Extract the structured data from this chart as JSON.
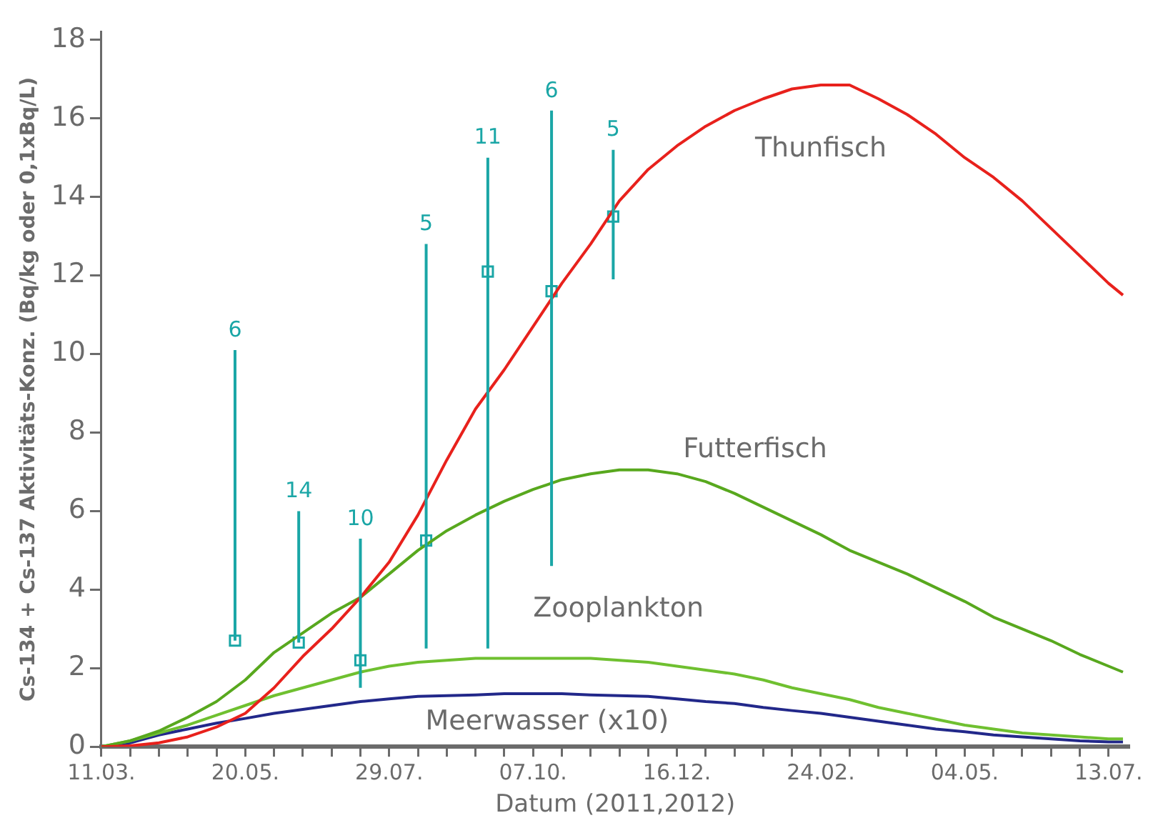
{
  "chart_data": {
    "type": "line",
    "xlabel": "Datum (2011,2012)",
    "ylabel": "Cs-134 + Cs-137 Aktivitäts-Konz. (Bq/kg oder 0,1xBq/L)",
    "x": [
      "2011-03-11",
      "2011-03-25",
      "2011-04-08",
      "2011-04-22",
      "2011-05-06",
      "2011-05-20",
      "2011-06-03",
      "2011-06-17",
      "2011-07-01",
      "2011-07-15",
      "2011-07-29",
      "2011-08-12",
      "2011-08-26",
      "2011-09-09",
      "2011-09-23",
      "2011-10-07",
      "2011-10-21",
      "2011-11-04",
      "2011-11-18",
      "2011-12-02",
      "2011-12-16",
      "2011-12-30",
      "2012-01-13",
      "2012-01-27",
      "2012-02-10",
      "2012-02-24",
      "2012-03-09",
      "2012-03-23",
      "2012-04-06",
      "2012-04-20",
      "2012-05-04",
      "2012-05-18",
      "2012-06-01",
      "2012-06-15",
      "2012-06-29",
      "2012-07-13",
      "2012-07-20"
    ],
    "series": [
      {
        "name": "Thunfisch",
        "type": "line",
        "color": "#e8211c",
        "values": [
          0,
          0.02,
          0.1,
          0.25,
          0.5,
          0.85,
          1.5,
          2.3,
          3.0,
          3.8,
          4.7,
          5.9,
          7.3,
          8.6,
          9.6,
          10.7,
          11.8,
          12.8,
          13.9,
          14.7,
          15.3,
          15.8,
          16.2,
          16.5,
          16.75,
          16.85,
          16.85,
          16.5,
          16.1,
          15.6,
          15.0,
          14.5,
          13.9,
          13.2,
          12.5,
          11.8,
          11.5
        ]
      },
      {
        "name": "Futterfisch",
        "type": "line",
        "color": "#58a81e",
        "values": [
          0,
          0.15,
          0.4,
          0.75,
          1.15,
          1.7,
          2.4,
          2.9,
          3.4,
          3.8,
          4.4,
          5.0,
          5.5,
          5.9,
          6.25,
          6.55,
          6.8,
          6.95,
          7.05,
          7.05,
          6.95,
          6.75,
          6.45,
          6.1,
          5.75,
          5.4,
          5.0,
          4.7,
          4.4,
          4.05,
          3.7,
          3.3,
          3.0,
          2.7,
          2.35,
          2.05,
          1.9
        ]
      },
      {
        "name": "Zooplankton",
        "type": "line",
        "color": "#6fc030",
        "values": [
          0,
          0.15,
          0.35,
          0.55,
          0.8,
          1.05,
          1.3,
          1.5,
          1.7,
          1.9,
          2.05,
          2.15,
          2.2,
          2.25,
          2.25,
          2.25,
          2.25,
          2.25,
          2.2,
          2.15,
          2.05,
          1.95,
          1.85,
          1.7,
          1.5,
          1.35,
          1.2,
          1.0,
          0.85,
          0.7,
          0.55,
          0.45,
          0.35,
          0.3,
          0.25,
          0.2,
          0.2
        ]
      },
      {
        "name": "Meerwasser (x10)",
        "type": "line",
        "color": "#22288a",
        "values": [
          0,
          0.1,
          0.3,
          0.45,
          0.6,
          0.72,
          0.85,
          0.95,
          1.05,
          1.15,
          1.22,
          1.28,
          1.3,
          1.32,
          1.35,
          1.35,
          1.35,
          1.32,
          1.3,
          1.28,
          1.22,
          1.15,
          1.1,
          1.0,
          0.92,
          0.85,
          0.75,
          0.65,
          0.55,
          0.45,
          0.38,
          0.3,
          0.25,
          0.2,
          0.15,
          0.12,
          0.12
        ]
      },
      {
        "type": "scatter",
        "color": "#1aa6a6",
        "marker": "square",
        "x": [
          "2011-05-15",
          "2011-06-15",
          "2011-07-15",
          "2011-08-16",
          "2011-09-15",
          "2011-10-16",
          "2011-11-15"
        ],
        "values": [
          2.7,
          2.65,
          2.2,
          5.25,
          12.1,
          11.6,
          13.5
        ],
        "errors": [
          [
            2.7,
            10.1
          ],
          [
            2.65,
            6.0
          ],
          [
            1.5,
            5.3
          ],
          [
            2.5,
            12.8
          ],
          [
            2.5,
            15.0
          ],
          [
            4.6,
            16.2
          ],
          [
            11.9,
            15.2
          ]
        ]
      }
    ],
    "xlim": [
      "2011-03-11",
      "2012-07-23"
    ],
    "xticks": [
      {
        "value": "2011-03-11",
        "label": "11.03."
      },
      {
        "value": "2011-03-25",
        "label": null
      },
      {
        "value": "2011-04-08",
        "label": null
      },
      {
        "value": "2011-04-22",
        "label": null
      },
      {
        "value": "2011-05-06",
        "label": null
      },
      {
        "value": "2011-05-20",
        "label": "20.05."
      },
      {
        "value": "2011-06-03",
        "label": null
      },
      {
        "value": "2011-06-17",
        "label": null
      },
      {
        "value": "2011-07-01",
        "label": null
      },
      {
        "value": "2011-07-15",
        "label": null
      },
      {
        "value": "2011-07-29",
        "label": "29.07."
      },
      {
        "value": "2011-08-12",
        "label": null
      },
      {
        "value": "2011-08-26",
        "label": null
      },
      {
        "value": "2011-09-09",
        "label": null
      },
      {
        "value": "2011-09-23",
        "label": null
      },
      {
        "value": "2011-10-07",
        "label": "07.10."
      },
      {
        "value": "2011-10-21",
        "label": null
      },
      {
        "value": "2011-11-04",
        "label": null
      },
      {
        "value": "2011-11-18",
        "label": null
      },
      {
        "value": "2011-12-02",
        "label": null
      },
      {
        "value": "2011-12-16",
        "label": "16.12."
      },
      {
        "value": "2011-12-30",
        "label": null
      },
      {
        "value": "2012-01-13",
        "label": null
      },
      {
        "value": "2012-01-27",
        "label": null
      },
      {
        "value": "2012-02-10",
        "label": null
      },
      {
        "value": "2012-02-24",
        "label": "24.02."
      },
      {
        "value": "2012-03-09",
        "label": null
      },
      {
        "value": "2012-03-23",
        "label": null
      },
      {
        "value": "2012-04-06",
        "label": null
      },
      {
        "value": "2012-04-20",
        "label": null
      },
      {
        "value": "2012-05-04",
        "label": "04.05."
      },
      {
        "value": "2012-05-18",
        "label": null
      },
      {
        "value": "2012-06-01",
        "label": null
      },
      {
        "value": "2012-06-15",
        "label": null
      },
      {
        "value": "2012-06-29",
        "label": null
      },
      {
        "value": "2012-07-13",
        "label": "13.07."
      }
    ],
    "ylim": [
      0,
      18.2
    ],
    "yticks": [
      0,
      2,
      4,
      6,
      8,
      10,
      12,
      14,
      16,
      18
    ],
    "annotations": [
      {
        "text": "6",
        "x": "2011-05-15",
        "y": 10.1
      },
      {
        "text": "14",
        "x": "2011-06-15",
        "y": 6.0
      },
      {
        "text": "10",
        "x": "2011-07-15",
        "y": 5.3
      },
      {
        "text": "5",
        "x": "2011-08-16",
        "y": 12.8
      },
      {
        "text": "11",
        "x": "2011-09-15",
        "y": 15.0
      },
      {
        "text": "6",
        "x": "2011-10-16",
        "y": 16.2
      },
      {
        "text": "5",
        "x": "2011-11-15",
        "y": 15.2
      }
    ],
    "grid": false,
    "legend": false,
    "line_style": "solid"
  }
}
